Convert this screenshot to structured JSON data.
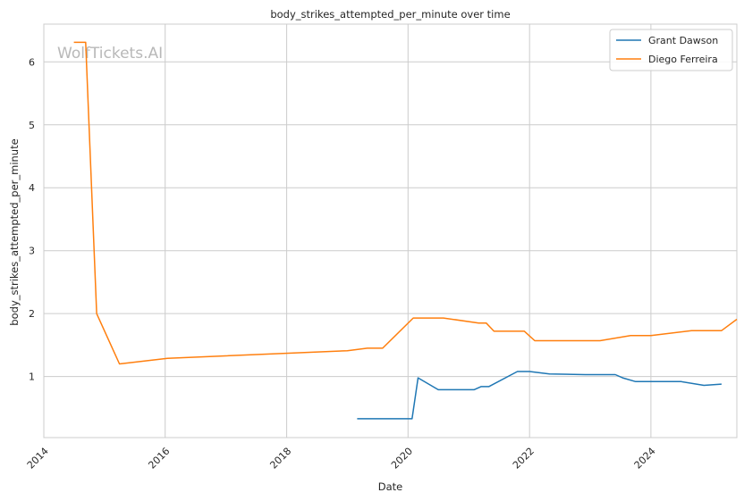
{
  "chart_data": {
    "type": "line",
    "title": "body_strikes_attempted_per_minute over time",
    "xlabel": "Date",
    "ylabel": "body_strikes_attempted_per_minute",
    "x_ticks": [
      "2014",
      "2016",
      "2018",
      "2020",
      "2022",
      "2024"
    ],
    "y_ticks": [
      "1",
      "2",
      "3",
      "4",
      "5",
      "6"
    ],
    "xlim": [
      "2014-01-01",
      "2025-06-01"
    ],
    "ylim": [
      0.03,
      6.6
    ],
    "grid": true,
    "legend_position": "top-right",
    "watermark": "WolfTickets.AI",
    "series": [
      {
        "name": "Grant Dawson",
        "color": "#1f77b4",
        "points": [
          [
            "2019-03-01",
            0.33
          ],
          [
            "2020-01-25",
            0.33
          ],
          [
            "2020-03-01",
            0.98
          ],
          [
            "2020-07-01",
            0.79
          ],
          [
            "2021-02-01",
            0.79
          ],
          [
            "2021-03-15",
            0.84
          ],
          [
            "2021-05-01",
            0.84
          ],
          [
            "2021-10-20",
            1.08
          ],
          [
            "2022-01-01",
            1.08
          ],
          [
            "2022-05-01",
            1.04
          ],
          [
            "2022-12-01",
            1.03
          ],
          [
            "2023-06-01",
            1.03
          ],
          [
            "2023-07-15",
            0.98
          ],
          [
            "2023-10-01",
            0.92
          ],
          [
            "2024-07-01",
            0.92
          ],
          [
            "2024-11-15",
            0.86
          ],
          [
            "2025-03-01",
            0.88
          ]
        ]
      },
      {
        "name": "Diego Ferreira",
        "color": "#ff7f0e",
        "points": [
          [
            "2014-07-01",
            6.31
          ],
          [
            "2014-09-10",
            6.31
          ],
          [
            "2014-11-15",
            2.0
          ],
          [
            "2015-04-01",
            1.2
          ],
          [
            "2016-01-15",
            1.29
          ],
          [
            "2019-01-01",
            1.41
          ],
          [
            "2019-05-01",
            1.45
          ],
          [
            "2019-08-01",
            1.45
          ],
          [
            "2020-02-01",
            1.93
          ],
          [
            "2020-08-01",
            1.93
          ],
          [
            "2021-03-01",
            1.85
          ],
          [
            "2021-04-15",
            1.85
          ],
          [
            "2021-06-01",
            1.72
          ],
          [
            "2021-12-01",
            1.72
          ],
          [
            "2022-02-01",
            1.57
          ],
          [
            "2023-03-01",
            1.57
          ],
          [
            "2023-09-01",
            1.65
          ],
          [
            "2024-01-01",
            1.65
          ],
          [
            "2024-09-01",
            1.73
          ],
          [
            "2025-03-01",
            1.73
          ],
          [
            "2025-06-01",
            1.91
          ]
        ]
      }
    ]
  }
}
